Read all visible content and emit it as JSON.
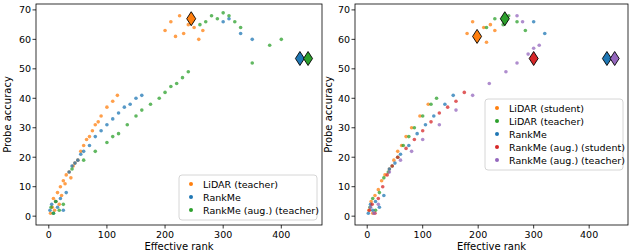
{
  "chart_data": [
    {
      "type": "scatter",
      "xlabel": "Effective rank",
      "ylabel": "Probe accuracy",
      "xlim": [
        -22,
        470
      ],
      "ylim": [
        -3,
        72
      ],
      "xticks": [
        0,
        100,
        200,
        300,
        400
      ],
      "yticks": [
        0,
        10,
        20,
        30,
        40,
        50,
        60,
        70
      ],
      "legend": "lower right",
      "series": [
        {
          "name": "LiDAR (teacher)",
          "color": "#ff7f0e",
          "marker": "circle",
          "x": [
            3,
            6,
            8,
            10,
            12,
            15,
            18,
            20,
            22,
            25,
            28,
            30,
            35,
            38,
            42,
            45,
            50,
            55,
            60,
            65,
            70,
            75,
            80,
            85,
            90,
            100,
            110,
            118,
            200,
            210,
            218,
            225,
            232,
            240,
            250,
            258,
            265
          ],
          "y": [
            1,
            3,
            6,
            2,
            5,
            8,
            4,
            10,
            7,
            12,
            11,
            14,
            15,
            13,
            17,
            18,
            19,
            22,
            24,
            26,
            27,
            29,
            31,
            32,
            34,
            37,
            39,
            41,
            63,
            66,
            61,
            68,
            62,
            65,
            64,
            60,
            63
          ],
          "highlight": [
            {
              "x": 245,
              "y": 67
            }
          ]
        },
        {
          "name": "RankMe",
          "color": "#1f77b4",
          "marker": "circle",
          "x": [
            2,
            5,
            8,
            12,
            15,
            20,
            25,
            30,
            35,
            40,
            45,
            50,
            55,
            60,
            70,
            80,
            90,
            100,
            110,
            120,
            130,
            140,
            150,
            160,
            300,
            310,
            330,
            350
          ],
          "y": [
            2,
            4,
            1,
            5,
            3,
            6,
            2,
            8,
            15,
            17,
            18,
            19,
            21,
            22,
            24,
            27,
            29,
            31,
            33,
            35,
            37,
            38,
            40,
            41,
            66,
            67,
            62,
            60
          ],
          "highlight": [
            {
              "x": 432,
              "y": 53.5
            }
          ]
        },
        {
          "name": "RankMe (aug.) (teacher)",
          "color": "#2ca02c",
          "marker": "circle",
          "x": [
            4,
            8,
            12,
            18,
            25,
            40,
            60,
            80,
            100,
            110,
            120,
            135,
            150,
            160,
            175,
            190,
            200,
            210,
            220,
            230,
            240,
            260,
            270,
            280,
            290,
            300,
            310,
            320,
            330,
            350,
            380,
            400
          ],
          "y": [
            3,
            1,
            5,
            2,
            4,
            16,
            19,
            22,
            25,
            27,
            28,
            31,
            34,
            36,
            38,
            40,
            42,
            44,
            45,
            47,
            49,
            65,
            66,
            68,
            67,
            69,
            68,
            66,
            64,
            52,
            58,
            60
          ],
          "highlight": [
            {
              "x": 446,
              "y": 53.5
            }
          ]
        }
      ]
    },
    {
      "type": "scatter",
      "xlabel": "Effective rank",
      "ylabel": "Probe accuracy",
      "xlim": [
        -22,
        470
      ],
      "ylim": [
        -3,
        72
      ],
      "xticks": [
        0,
        100,
        200,
        300,
        400
      ],
      "yticks": [
        0,
        10,
        20,
        30,
        40,
        50,
        60,
        70
      ],
      "legend": "center right",
      "series": [
        {
          "name": "LiDAR (student)",
          "color": "#ff7f0e",
          "marker": "circle",
          "x": [
            3,
            7,
            10,
            14,
            20,
            26,
            32,
            40,
            48,
            55,
            62,
            70,
            80,
            95,
            110,
            180,
            190,
            200,
            210,
            215,
            222,
            230
          ],
          "y": [
            2,
            5,
            1,
            7,
            9,
            12,
            14,
            16,
            19,
            22,
            24,
            27,
            30,
            34,
            38,
            62,
            66,
            61,
            64,
            59,
            65,
            63
          ],
          "highlight": [
            {
              "x": 198,
              "y": 61
            }
          ]
        },
        {
          "name": "LiDAR (teacher)",
          "color": "#2ca02c",
          "marker": "circle",
          "x": [
            5,
            10,
            15,
            22,
            30,
            38,
            45,
            55,
            65,
            75,
            85,
            100,
            115,
            125,
            200,
            215,
            230,
            245,
            255,
            270,
            285
          ],
          "y": [
            3,
            6,
            2,
            8,
            13,
            15,
            17,
            20,
            24,
            27,
            30,
            34,
            38,
            40,
            61,
            64,
            67,
            65,
            68,
            66,
            63
          ],
          "highlight": [
            {
              "x": 248,
              "y": 67
            }
          ]
        },
        {
          "name": "RankMe",
          "color": "#1f77b4",
          "marker": "circle",
          "x": [
            2,
            6,
            10,
            15,
            22,
            30,
            40,
            50,
            60,
            75,
            90,
            105,
            120,
            140,
            155,
            300,
            320
          ],
          "y": [
            1,
            4,
            2,
            5,
            3,
            7,
            16,
            18,
            21,
            24,
            28,
            31,
            34,
            38,
            41,
            66,
            62
          ],
          "highlight": [
            {
              "x": 432,
              "y": 53.5
            }
          ]
        },
        {
          "name": "RankMe (aug.) (student)",
          "color": "#d62728",
          "marker": "circle",
          "x": [
            4,
            9,
            14,
            20,
            28,
            36,
            45,
            55,
            70,
            85,
            100,
            115,
            130,
            145,
            160,
            175
          ],
          "y": [
            2,
            4,
            1,
            6,
            10,
            14,
            17,
            20,
            23,
            26,
            29,
            32,
            35,
            37,
            39,
            42
          ],
          "highlight": [
            {
              "x": 300,
              "y": 53.5
            }
          ]
        },
        {
          "name": "RankMe (aug.) (teacher)",
          "color": "#9467bd",
          "marker": "circle",
          "x": [
            6,
            12,
            20,
            40,
            60,
            80,
            100,
            130,
            160,
            190,
            220,
            250,
            270,
            290,
            300,
            310,
            270,
            280
          ],
          "y": [
            3,
            1,
            4,
            15,
            19,
            22,
            26,
            31,
            36,
            41,
            45,
            49,
            52,
            55,
            57,
            58,
            68,
            66
          ],
          "highlight": [
            {
              "x": 446,
              "y": 53.5
            }
          ]
        }
      ]
    }
  ]
}
